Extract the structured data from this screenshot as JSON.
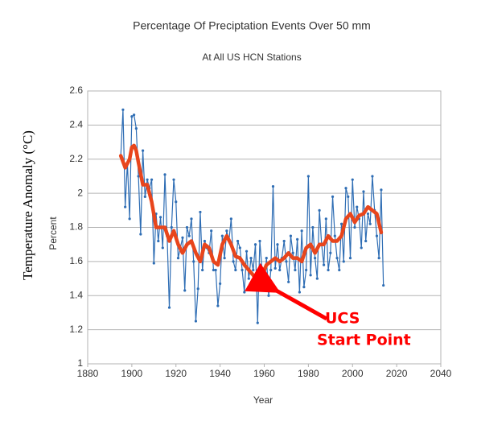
{
  "chart_data": {
    "type": "line",
    "title": "Percentage Of Preciptation Events Over 50 mm",
    "subtitle": "At All US HCN Stations",
    "xlabel": "Year",
    "ylabel": "Percent",
    "ylabel_overlay": "Temperature Anomaly (°C)",
    "annotations": [
      "UCS",
      "Start Point"
    ],
    "annotation_color": "#ff0000",
    "xlim": [
      1880,
      2040
    ],
    "xticks": [
      1880,
      1900,
      1920,
      1940,
      1960,
      1980,
      2000,
      2020,
      2040
    ],
    "ylim": [
      1,
      2.6
    ],
    "yticks": [
      1,
      1.2,
      1.4,
      1.6,
      1.8,
      2,
      2.2,
      2.4,
      2.6
    ],
    "grid": true,
    "series": [
      {
        "color": "#2e6db4",
        "markers": true,
        "x": [
          1895,
          1896,
          1897,
          1898,
          1899,
          1900,
          1901,
          1902,
          1903,
          1904,
          1905,
          1906,
          1907,
          1908,
          1909,
          1910,
          1911,
          1912,
          1913,
          1914,
          1915,
          1916,
          1917,
          1918,
          1919,
          1920,
          1921,
          1922,
          1923,
          1924,
          1925,
          1926,
          1927,
          1928,
          1929,
          1930,
          1931,
          1932,
          1933,
          1934,
          1935,
          1936,
          1937,
          1938,
          1939,
          1940,
          1941,
          1942,
          1943,
          1944,
          1945,
          1946,
          1947,
          1948,
          1949,
          1950,
          1951,
          1952,
          1953,
          1954,
          1955,
          1956,
          1957,
          1958,
          1959,
          1960,
          1961,
          1962,
          1963,
          1964,
          1965,
          1966,
          1967,
          1968,
          1969,
          1970,
          1971,
          1972,
          1973,
          1974,
          1975,
          1976,
          1977,
          1978,
          1979,
          1980,
          1981,
          1982,
          1983,
          1984,
          1985,
          1986,
          1987,
          1988,
          1989,
          1990,
          1991,
          1992,
          1993,
          1994,
          1995,
          1996,
          1997,
          1998,
          1999,
          2000,
          2001,
          2002,
          2003,
          2004,
          2005,
          2006,
          2007,
          2008,
          2009,
          2010,
          2011,
          2012,
          2013,
          2014
        ],
        "values": [
          2.22,
          2.49,
          1.92,
          2.18,
          1.85,
          2.45,
          2.46,
          2.38,
          2.1,
          1.76,
          2.25,
          1.98,
          2.08,
          2.03,
          2.08,
          1.59,
          1.88,
          1.72,
          1.86,
          1.68,
          2.11,
          1.75,
          1.33,
          1.8,
          2.08,
          1.95,
          1.62,
          1.68,
          1.74,
          1.43,
          1.8,
          1.75,
          1.85,
          1.6,
          1.25,
          1.44,
          1.89,
          1.55,
          1.72,
          1.68,
          1.65,
          1.78,
          1.55,
          1.55,
          1.34,
          1.47,
          1.75,
          1.62,
          1.78,
          1.72,
          1.85,
          1.6,
          1.55,
          1.72,
          1.68,
          1.55,
          1.42,
          1.66,
          1.5,
          1.62,
          1.55,
          1.7,
          1.24,
          1.72,
          1.55,
          1.43,
          1.62,
          1.4,
          1.55,
          2.04,
          1.56,
          1.7,
          1.55,
          1.62,
          1.72,
          1.6,
          1.48,
          1.75,
          1.65,
          1.55,
          1.73,
          1.42,
          1.78,
          1.45,
          1.55,
          2.1,
          1.52,
          1.8,
          1.62,
          1.5,
          1.9,
          1.7,
          1.58,
          1.85,
          1.55,
          1.65,
          1.98,
          1.75,
          1.62,
          1.55,
          1.82,
          1.6,
          2.03,
          1.98,
          1.62,
          2.08,
          1.8,
          1.92,
          1.85,
          1.68,
          2.01,
          1.72,
          1.88,
          1.82,
          2.1,
          1.9,
          1.75,
          1.62,
          2.02,
          1.46
        ]
      },
      {
        "color": "#e8451c",
        "markers": false,
        "x": [
          1895,
          1897,
          1899,
          1900,
          1901,
          1902,
          1903,
          1905,
          1907,
          1909,
          1911,
          1913,
          1915,
          1917,
          1919,
          1921,
          1923,
          1925,
          1927,
          1929,
          1931,
          1933,
          1935,
          1937,
          1939,
          1941,
          1943,
          1945,
          1947,
          1949,
          1951,
          1953,
          1955,
          1957,
          1959,
          1961,
          1963,
          1965,
          1967,
          1969,
          1971,
          1973,
          1975,
          1977,
          1979,
          1981,
          1983,
          1985,
          1987,
          1989,
          1991,
          1993,
          1995,
          1997,
          1999,
          2001,
          2003,
          2005,
          2007,
          2009,
          2011,
          2013
        ],
        "values": [
          2.22,
          2.15,
          2.2,
          2.27,
          2.28,
          2.25,
          2.18,
          2.05,
          2.05,
          1.95,
          1.8,
          1.8,
          1.8,
          1.72,
          1.78,
          1.7,
          1.65,
          1.7,
          1.72,
          1.65,
          1.6,
          1.7,
          1.68,
          1.6,
          1.58,
          1.7,
          1.75,
          1.7,
          1.63,
          1.62,
          1.58,
          1.55,
          1.52,
          1.48,
          1.52,
          1.58,
          1.6,
          1.62,
          1.6,
          1.62,
          1.65,
          1.62,
          1.62,
          1.6,
          1.68,
          1.7,
          1.65,
          1.7,
          1.7,
          1.75,
          1.72,
          1.72,
          1.75,
          1.85,
          1.88,
          1.83,
          1.87,
          1.88,
          1.92,
          1.9,
          1.88,
          1.77
        ]
      }
    ]
  }
}
